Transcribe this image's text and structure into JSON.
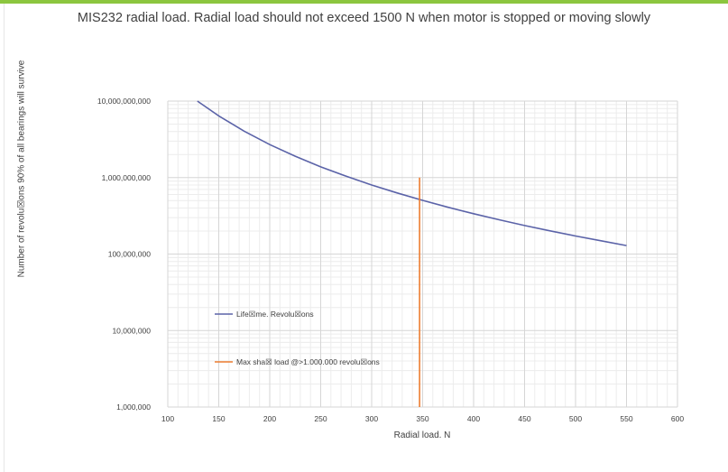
{
  "chart_data": {
    "type": "line",
    "title": "MIS232 radial load. Radial load should not exceed 1500 N when motor is stopped or moving slowly",
    "xlabel": "Radial load. N",
    "ylabel": "Number of revolu☒ons 90% of all bearings will survive",
    "xlim": [
      100,
      600
    ],
    "ylim": [
      1000000,
      10000000000
    ],
    "yscale": "log",
    "x_ticks": [
      "100",
      "150",
      "200",
      "250",
      "300",
      "350",
      "400",
      "450",
      "500",
      "550",
      "600"
    ],
    "y_ticks": [
      "1,000,000",
      "10,000,000",
      "100,000,000",
      "1,000,000,000",
      "10,000,000,000"
    ],
    "grid": true,
    "legend_position": "left-middle",
    "series": [
      {
        "name": "Life☒me. Revolu☒ons",
        "color": "#5b63a8",
        "x": [
          129,
          150,
          175,
          200,
          225,
          250,
          275,
          300,
          325,
          350,
          375,
          400,
          425,
          450,
          475,
          500,
          525,
          550
        ],
        "y": [
          10000000000,
          6400000000,
          4040000000,
          2700000000,
          1900000000,
          1380000000,
          1040000000,
          800000000,
          629000000,
          504000000,
          409000000,
          337000000,
          281000000,
          236000000,
          201000000,
          172000000,
          149000000,
          129000000
        ]
      },
      {
        "name": "Max sha☒ load @>1.000.000 revolu☒ons",
        "color": "#ed7d31",
        "x": [
          347,
          347
        ],
        "y": [
          1000000,
          1000000000
        ]
      }
    ]
  }
}
